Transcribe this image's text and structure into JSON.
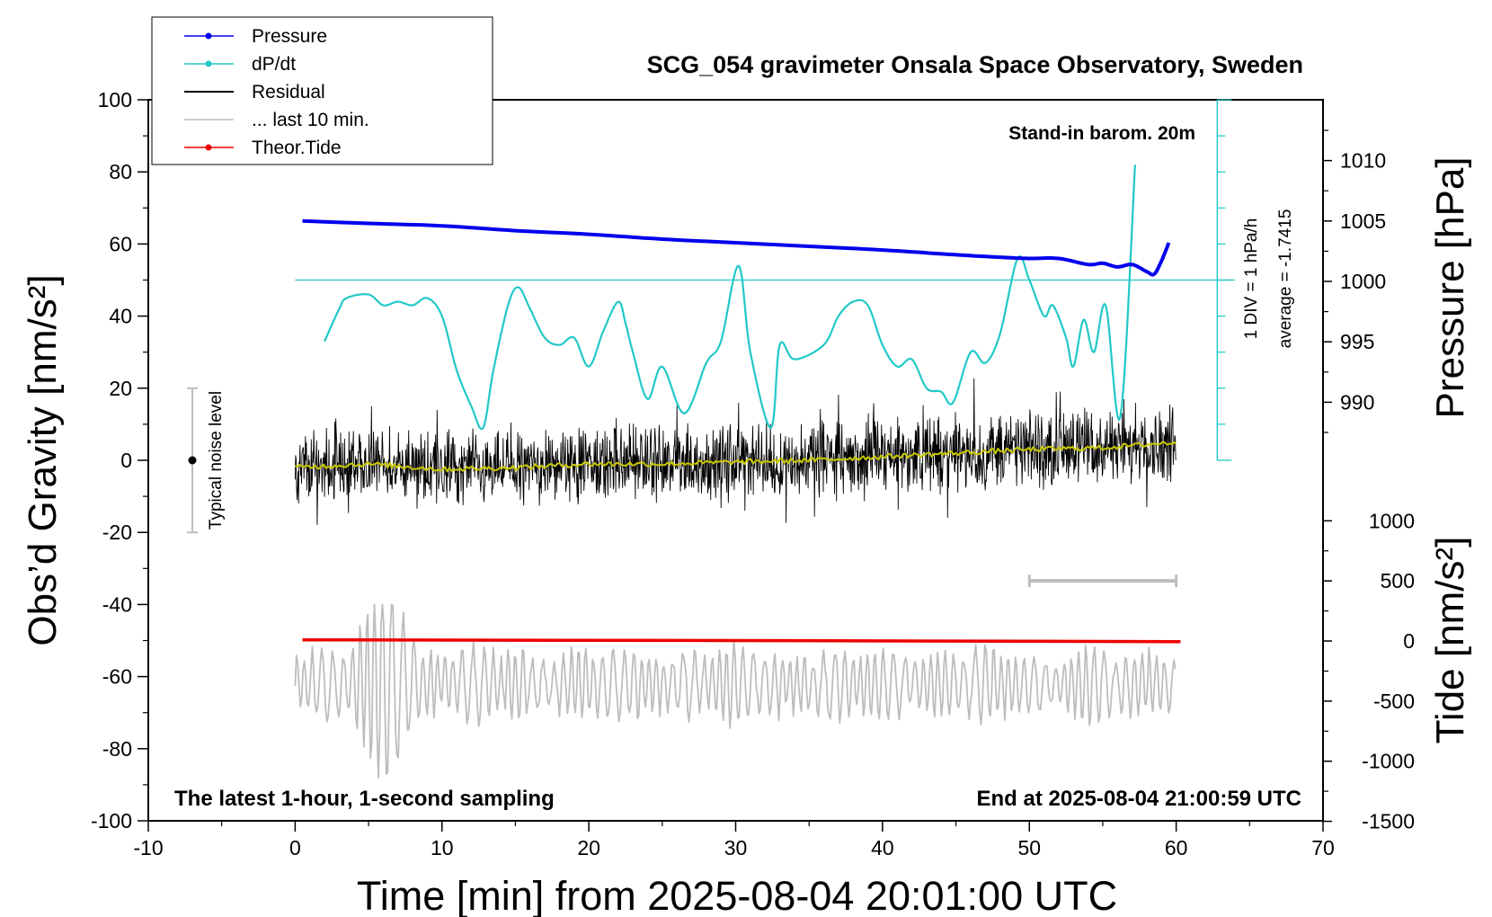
{
  "chart_data": {
    "type": "line",
    "title": "SCG_054 gravimeter Onsala Space Observatory, Sweden",
    "xlabel": "Time [min] from 2025-08-04 20:01:00 UTC",
    "ylabel_left": "Obs’d Gravity [nm/s²]",
    "ylabel_pressure": "Pressure [hPa]",
    "ylabel_tide": "Tide [nm/s²]",
    "xlim": [
      -10,
      70
    ],
    "ylim": [
      -100,
      100
    ],
    "x_ticks": [
      "-10",
      "0",
      "10",
      "20",
      "30",
      "40",
      "50",
      "60",
      "70"
    ],
    "y_ticks": [
      "100",
      "80",
      "60",
      "40",
      "20",
      "0",
      "-20",
      "-40",
      "-60",
      "-80",
      "-100"
    ],
    "pressure_ticks": [
      "1010",
      "1005",
      "1000",
      "995",
      "990"
    ],
    "tide_ticks": [
      "1000",
      "500",
      "0",
      "-500",
      "-1000",
      "-1500"
    ],
    "legend": {
      "placement": "top-left",
      "entries": [
        {
          "label": "Pressure",
          "color": "#0000ee",
          "marker": true
        },
        {
          "label": "dP/dt",
          "color": "#22c8c8",
          "marker": true
        },
        {
          "label": "Residual",
          "color": "#000000",
          "marker": false
        },
        {
          "label": "... last 10 min.",
          "color": "#bdbdbd",
          "marker": false
        },
        {
          "label": "Theor.Tide",
          "color": "#ee0000",
          "marker": true
        }
      ]
    },
    "annotations": {
      "barometer": "Stand-in barom. 20m",
      "dpdt_scale": "1 DIV = 1 hPa/h",
      "dpdt_average": "average = -1.7415",
      "noise": "Typical noise level",
      "bottom_left": "The latest 1-hour, 1-second sampling",
      "bottom_right": "End at 2025-08-04 21:00:59 UTC"
    },
    "noise_level": {
      "x": -7,
      "center": 0,
      "range": [
        -20,
        20
      ]
    },
    "last10_bar": {
      "x_range": [
        50,
        60
      ],
      "tide_value": 500
    },
    "dpdt_reference": {
      "x_range": [
        0,
        64
      ],
      "level": 50
    },
    "series": [
      {
        "name": "Pressure",
        "color": "#0000ee",
        "unit": "hPa",
        "x": [
          0.5,
          5,
          10,
          15,
          20,
          25,
          30,
          35,
          40,
          45,
          48,
          50,
          52,
          54,
          55,
          56,
          57,
          58,
          58.5,
          59,
          59.5
        ],
        "y": [
          1005.0,
          1004.8,
          1004.6,
          1004.2,
          1003.9,
          1003.5,
          1003.2,
          1002.9,
          1002.6,
          1002.2,
          1002.0,
          1001.9,
          1001.9,
          1001.4,
          1001.5,
          1001.2,
          1001.4,
          1000.8,
          1000.6,
          1001.7,
          1003.2
        ]
      },
      {
        "name": "dP/dt",
        "color": "#22c8c8",
        "unit": "nm/s² (1 DIV = 1 hPa/h)",
        "x": [
          2,
          3,
          3.5,
          5,
          6,
          7,
          8,
          9,
          10,
          11,
          12,
          12.8,
          13.5,
          14.5,
          15.2,
          16,
          17,
          18,
          19,
          20,
          21,
          22,
          22.5,
          23,
          24,
          25,
          26.5,
          28,
          29,
          30.2,
          31,
          32.4,
          33,
          34,
          36,
          37,
          38,
          39,
          40,
          41,
          42,
          43,
          44,
          44.8,
          46,
          47,
          48,
          49.2,
          50,
          51,
          51.6,
          52.5,
          53,
          53.7,
          54.4,
          55.2,
          56.2,
          57.2
        ],
        "y": [
          33,
          42,
          45,
          46,
          43,
          44,
          43,
          45,
          40,
          25,
          15,
          9,
          25,
          43,
          48,
          42,
          34,
          32,
          34,
          26,
          36,
          44,
          38,
          30,
          17,
          26,
          13,
          27,
          33,
          54,
          30,
          9,
          32,
          28,
          32,
          40,
          44,
          43,
          32,
          26,
          28,
          20,
          19,
          16,
          30,
          27,
          35,
          56,
          50,
          40,
          43,
          34,
          26,
          39,
          30,
          43,
          12,
          82
        ]
      },
      {
        "name": "Residual",
        "color": "#000000",
        "unit": "nm/s²",
        "x_range": [
          0,
          60
        ],
        "sampling": "1-second",
        "y_range": [
          -23,
          27
        ]
      },
      {
        "name": "... last 10 min.",
        "color": "#bdbdbd",
        "unit": "nm/s²",
        "x_range": [
          0,
          60
        ],
        "y_range": [
          -88,
          -40
        ]
      },
      {
        "name": "Theor.Tide",
        "color": "#ee0000",
        "unit": "nm/s²",
        "x": [
          0.5,
          30,
          60.3
        ],
        "y": [
          -49.8,
          -50.0,
          -50.3
        ]
      }
    ],
    "residual_smoothed": {
      "color": "#c8c800",
      "x": [
        0,
        5,
        10,
        15,
        20,
        25,
        30,
        35,
        40,
        45,
        50,
        55,
        60
      ],
      "y": [
        -2,
        -1,
        -2.5,
        -2,
        -1,
        -1,
        -0.5,
        0,
        1,
        2,
        3,
        3.5,
        5
      ]
    }
  }
}
